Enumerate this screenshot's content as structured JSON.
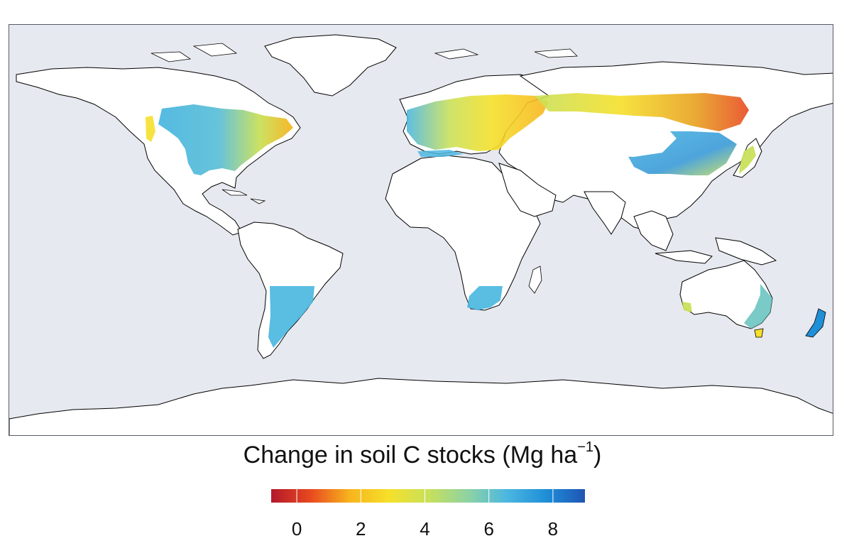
{
  "legend": {
    "title_main": "Change in soil C stocks (Mg ha",
    "title_sup": "−1",
    "title_end": ")",
    "ticks": [
      "0",
      "2",
      "4",
      "6",
      "8"
    ],
    "tick_values": [
      0,
      2,
      4,
      6,
      8
    ],
    "range": [
      -0.8,
      9.0
    ],
    "colors": [
      "#b2182b",
      "#e8491f",
      "#f7b41e",
      "#f5e02a",
      "#c9e05a",
      "#8fd3a2",
      "#4cb7e0",
      "#1f8fd8",
      "#1f55b4"
    ]
  },
  "map": {
    "ocean_color": "#e6e9ef",
    "land_color": "#ffffff",
    "coastline_color": "#000000"
  }
}
